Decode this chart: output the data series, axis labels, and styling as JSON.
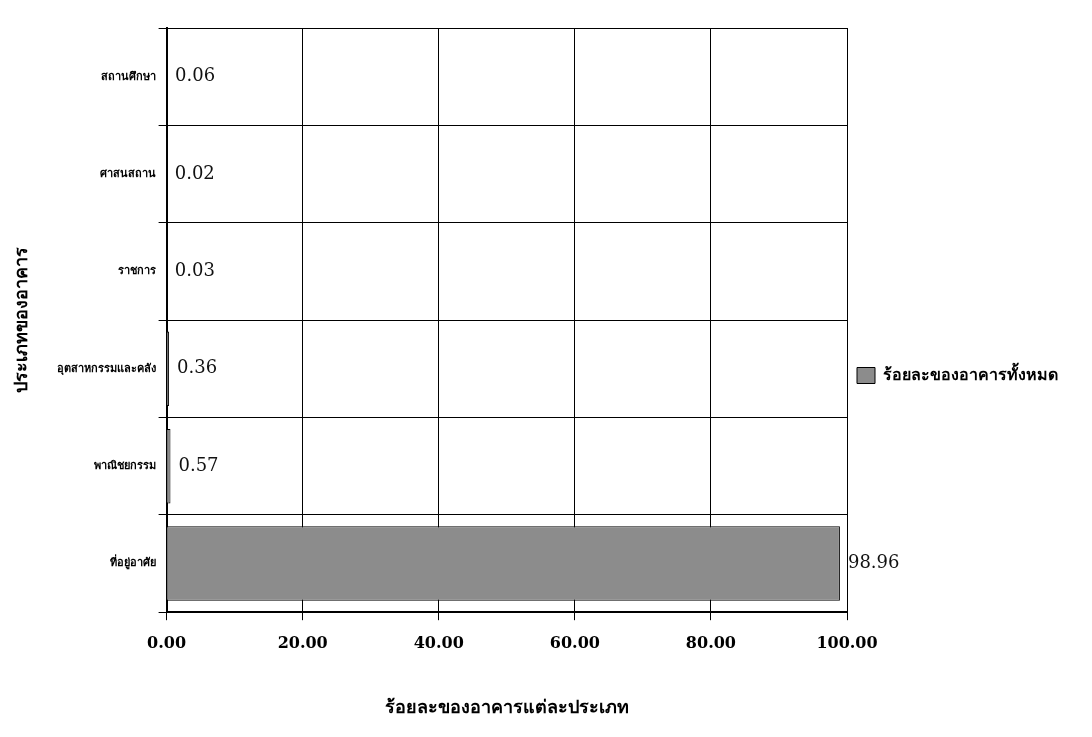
{
  "chart_data": {
    "type": "bar",
    "orientation": "horizontal",
    "categories": [
      "สถานศึกษา",
      "ศาสนสถาน",
      "ราชการ",
      "อุตสาหกรรมและคลัง",
      "พาณิชยกรรม",
      "ที่อยู่อาศัย"
    ],
    "series": [
      {
        "name": "ร้อยละของอาคารทั้งหมด",
        "color": "#8c8c8c",
        "values": [
          0.06,
          0.02,
          0.03,
          0.36,
          0.57,
          98.96
        ]
      }
    ],
    "xlabel": "ร้อยละของอาคารแต่ละประเภท",
    "ylabel": "ประเภทของอาคาร",
    "xlim": [
      0,
      100
    ],
    "xticks": [
      {
        "value": 0,
        "label": "0.00"
      },
      {
        "value": 20,
        "label": "20.00"
      },
      {
        "value": 40,
        "label": "40.00"
      },
      {
        "value": 60,
        "label": "60.00"
      },
      {
        "value": 80,
        "label": "80.00"
      },
      {
        "value": 100,
        "label": "100.00"
      }
    ],
    "grid": true,
    "legend": "right",
    "data_labels": true
  }
}
